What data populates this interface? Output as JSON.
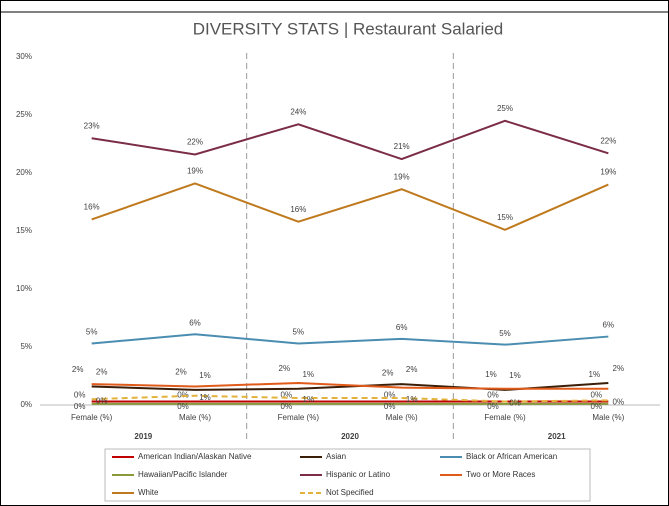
{
  "chart_data": {
    "type": "line",
    "title": "DIVERSITY STATS | Restaurant Salaried",
    "categories": [
      "Female (%)",
      "Male (%)",
      "Female (%)",
      "Male (%)",
      "Female (%)",
      "Male (%)"
    ],
    "years": [
      "2019",
      "2020",
      "2021"
    ],
    "ylim": [
      0,
      30
    ],
    "yticks": [
      {
        "value": 0,
        "label": "0%"
      },
      {
        "value": 5,
        "label": "5%"
      },
      {
        "value": 10,
        "label": "10%"
      },
      {
        "value": 15,
        "label": "15%"
      },
      {
        "value": 20,
        "label": "20%"
      },
      {
        "value": 25,
        "label": "25%"
      },
      {
        "value": 30,
        "label": "30%"
      }
    ],
    "series": [
      {
        "name": "American Indian/Alaskan Native",
        "color": "#c00000",
        "values": [
          0.3,
          0.3,
          0.3,
          0.3,
          0.3,
          0.3
        ],
        "value_labels": [
          "0%",
          "0%",
          "0%",
          "0%",
          "0%",
          "0%"
        ]
      },
      {
        "name": "Asian",
        "color": "#3b1e08",
        "values": [
          1.6,
          1.3,
          1.4,
          1.8,
          1.3,
          1.9
        ],
        "value_labels": [
          "2%",
          "1%",
          "1%",
          "2%",
          "1%",
          "2%"
        ]
      },
      {
        "name": "Black or African American",
        "color": "#4a8db0",
        "values": [
          5.3,
          6.1,
          5.3,
          5.7,
          5.2,
          5.9
        ],
        "value_labels": [
          "5%",
          "6%",
          "5%",
          "6%",
          "5%",
          "6%"
        ]
      },
      {
        "name": "Hawaiian/Pacific Islander",
        "color": "#8a9a3b",
        "values": [
          0.1,
          0.1,
          0.1,
          0.1,
          0.1,
          0.1
        ],
        "value_labels": [
          "0%",
          "0%",
          "0%",
          "0%",
          "0%",
          "0%"
        ]
      },
      {
        "name": "Hispanic or Latino",
        "color": "#7b2c47",
        "values": [
          23,
          21.6,
          24.2,
          21.2,
          24.5,
          21.7
        ],
        "value_labels": [
          "23%",
          "22%",
          "24%",
          "21%",
          "25%",
          "22%"
        ]
      },
      {
        "name": "Two or More Races",
        "color": "#e05a1a",
        "values": [
          1.8,
          1.6,
          1.9,
          1.5,
          1.4,
          1.4
        ],
        "value_labels": [
          "2%",
          "2%",
          "2%",
          "2%",
          "1%",
          "1%"
        ]
      },
      {
        "name": "White",
        "color": "#c07a1e",
        "values": [
          16,
          19.1,
          15.8,
          18.6,
          15.1,
          19.0
        ],
        "value_labels": [
          "16%",
          "19%",
          "16%",
          "19%",
          "15%",
          "19%"
        ]
      },
      {
        "name": "Not Specified",
        "color": "#e3b23c",
        "dashed": true,
        "values": [
          0.5,
          0.8,
          0.6,
          0.6,
          0.3,
          0.4
        ],
        "value_labels": [
          "0%",
          "1%",
          "1%",
          "1%",
          "0%",
          "0%"
        ]
      }
    ]
  }
}
